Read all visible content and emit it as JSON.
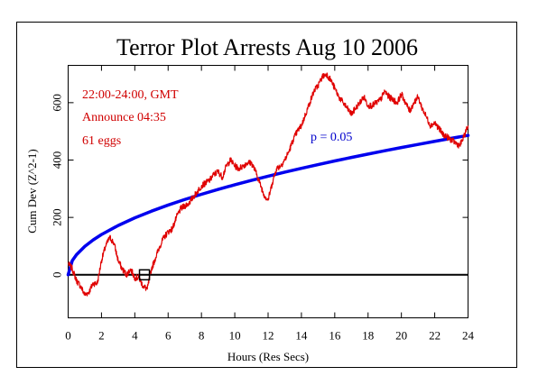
{
  "chart_data": {
    "type": "line",
    "title": "Terror Plot Arrests Aug 10 2006",
    "xlabel": "Hours (Res Secs)",
    "ylabel": "Cum Dev (Z^2-1)",
    "xlim": [
      0,
      24
    ],
    "ylim": [
      -150,
      730
    ],
    "x_ticks": [
      0,
      2,
      4,
      6,
      8,
      10,
      12,
      14,
      16,
      18,
      20,
      22,
      24
    ],
    "y_ticks": [
      0,
      200,
      400,
      600
    ],
    "annotations": [
      "22:00-24:00, GMT",
      "Announce 04:35",
      "61 eggs"
    ],
    "marker": {
      "x": 4.58,
      "y": 0
    },
    "grid": false,
    "series": [
      {
        "role": "cumulative-deviation",
        "color": "#e00000",
        "x": [
          0,
          0.25,
          0.5,
          0.75,
          1.0,
          1.25,
          1.5,
          1.75,
          2.0,
          2.25,
          2.5,
          2.75,
          3.0,
          3.25,
          3.5,
          3.75,
          4.0,
          4.25,
          4.5,
          4.75,
          5.0,
          5.25,
          5.5,
          5.75,
          6.0,
          6.25,
          6.5,
          6.75,
          7.0,
          7.25,
          7.5,
          7.75,
          8.0,
          8.25,
          8.5,
          8.75,
          9.0,
          9.25,
          9.5,
          9.75,
          10.0,
          10.25,
          10.5,
          10.75,
          11.0,
          11.25,
          11.5,
          11.75,
          12.0,
          12.25,
          12.5,
          12.75,
          13.0,
          13.25,
          13.5,
          13.75,
          14.0,
          14.25,
          14.5,
          14.75,
          15.0,
          15.25,
          15.5,
          15.75,
          16.0,
          16.25,
          16.5,
          16.75,
          17.0,
          17.25,
          17.5,
          17.75,
          18.0,
          18.25,
          18.5,
          18.75,
          19.0,
          19.25,
          19.5,
          19.75,
          20.0,
          20.25,
          20.5,
          20.75,
          21.0,
          21.25,
          21.5,
          21.75,
          22.0,
          22.25,
          22.5,
          22.75,
          23.0,
          23.25,
          23.5,
          23.75,
          24.0
        ],
        "values": [
          40,
          20,
          -20,
          -40,
          -70,
          -60,
          -30,
          -30,
          50,
          100,
          130,
          110,
          50,
          20,
          0,
          20,
          -10,
          -10,
          -40,
          -50,
          20,
          60,
          100,
          130,
          150,
          160,
          200,
          230,
          240,
          250,
          270,
          290,
          310,
          320,
          330,
          350,
          360,
          340,
          380,
          400,
          380,
          370,
          380,
          390,
          390,
          360,
          320,
          280,
          260,
          320,
          370,
          380,
          400,
          430,
          470,
          500,
          520,
          560,
          600,
          640,
          660,
          690,
          700,
          680,
          650,
          620,
          600,
          580,
          560,
          580,
          600,
          620,
          590,
          590,
          600,
          610,
          640,
          620,
          610,
          600,
          630,
          600,
          570,
          600,
          620,
          580,
          550,
          520,
          530,
          510,
          490,
          480,
          470,
          460,
          450,
          480,
          520
        ]
      },
      {
        "role": "p-0.05-envelope",
        "label": "p = 0.05",
        "color": "#0000ee",
        "formula": "1.645 * sqrt(2 * 61 * seconds)",
        "x": [
          0,
          0.25,
          0.5,
          1,
          1.5,
          2,
          3,
          4,
          5,
          6,
          7,
          8,
          9,
          10,
          11,
          12,
          13,
          14,
          15,
          16,
          17,
          18,
          19,
          20,
          21,
          22,
          23,
          24
        ],
        "values": [
          0,
          49.6,
          70.1,
          99.2,
          121.5,
          140.3,
          171.8,
          198.4,
          221.8,
          243.0,
          262.5,
          280.6,
          297.6,
          313.7,
          329.0,
          343.6,
          357.7,
          371.2,
          384.2,
          396.8,
          409.0,
          420.8,
          432.4,
          443.6,
          454.5,
          465.3,
          475.7,
          485.9
        ]
      }
    ]
  }
}
